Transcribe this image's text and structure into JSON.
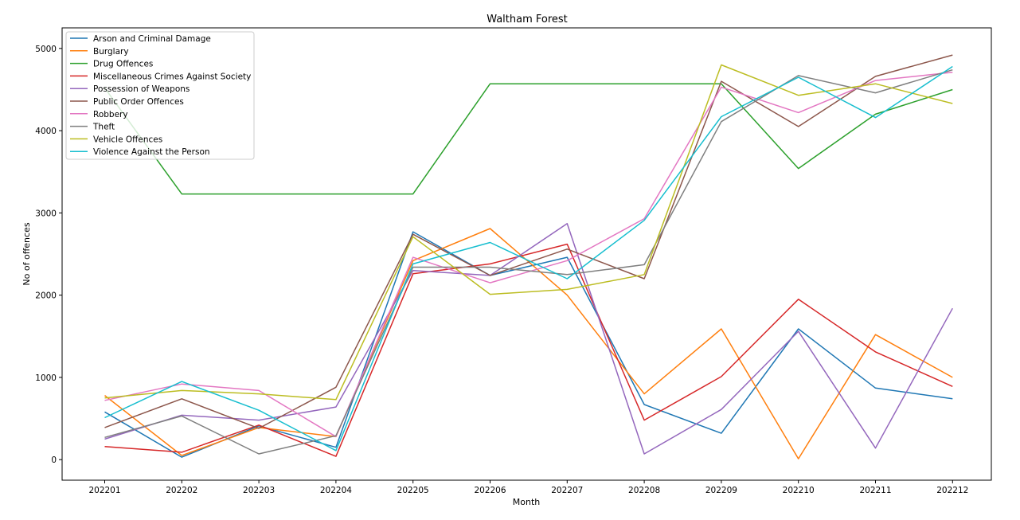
{
  "chart_data": {
    "type": "line",
    "title": "Waltham Forest",
    "xlabel": "Month",
    "ylabel": "No of offences",
    "categories": [
      "202201",
      "202202",
      "202203",
      "202204",
      "202205",
      "202206",
      "202207",
      "202208",
      "202209",
      "202210",
      "202211",
      "202212"
    ],
    "ylim": [
      -250,
      5250
    ],
    "yticks": [
      0,
      1000,
      2000,
      3000,
      4000,
      5000
    ],
    "grid": false,
    "legend_position": "top-left",
    "series": [
      {
        "name": "Arson and Criminal Damage",
        "color": "#1f77b4",
        "values": [
          580,
          30,
          410,
          150,
          2770,
          2240,
          2460,
          670,
          320,
          1590,
          870,
          740
        ]
      },
      {
        "name": "Burglary",
        "color": "#ff7f0e",
        "values": [
          780,
          50,
          390,
          280,
          2420,
          2810,
          2000,
          800,
          1590,
          10,
          1520,
          1000
        ]
      },
      {
        "name": "Drug Offences",
        "color": "#2ca02c",
        "values": [
          4520,
          3230,
          3230,
          3230,
          3230,
          4570,
          4570,
          4570,
          4570,
          3540,
          4200,
          4500
        ]
      },
      {
        "name": "Miscellaneous Crimes Against Society",
        "color": "#d62728",
        "values": [
          160,
          90,
          420,
          40,
          2260,
          2380,
          2620,
          480,
          1010,
          1950,
          1310,
          890
        ]
      },
      {
        "name": "Possession of Weapons",
        "color": "#9467bd",
        "values": [
          250,
          540,
          480,
          640,
          2300,
          2240,
          2870,
          70,
          610,
          1560,
          140,
          1840
        ]
      },
      {
        "name": "Public Order Offences",
        "color": "#8c564b",
        "values": [
          390,
          740,
          380,
          880,
          2740,
          2240,
          2560,
          2200,
          4600,
          4050,
          4660,
          4920
        ]
      },
      {
        "name": "Robbery",
        "color": "#e377c2",
        "values": [
          720,
          920,
          840,
          280,
          2460,
          2150,
          2420,
          2930,
          4530,
          4220,
          4610,
          4710
        ]
      },
      {
        "name": "Theft",
        "color": "#7f7f7f",
        "values": [
          270,
          530,
          70,
          290,
          2340,
          2340,
          2250,
          2370,
          4110,
          4670,
          4460,
          4740
        ]
      },
      {
        "name": "Vehicle Offences",
        "color": "#bcbd22",
        "values": [
          750,
          840,
          800,
          730,
          2710,
          2010,
          2070,
          2250,
          4800,
          4430,
          4570,
          4330
        ]
      },
      {
        "name": "Violence Against the Person",
        "color": "#17becf",
        "values": [
          510,
          950,
          600,
          110,
          2380,
          2640,
          2200,
          2910,
          4170,
          4650,
          4160,
          4780
        ]
      }
    ]
  }
}
